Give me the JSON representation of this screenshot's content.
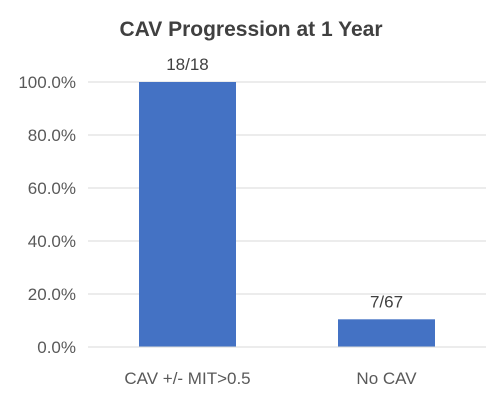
{
  "chart_data": {
    "type": "bar",
    "title": "CAV Progression at 1 Year",
    "categories": [
      "CAV +/- MIT>0.5",
      "No CAV"
    ],
    "values": [
      100.0,
      10.45
    ],
    "data_labels": [
      "18/18",
      "7/67"
    ],
    "ylim": [
      0,
      100
    ],
    "yticks": [
      "0.0%",
      "20.0%",
      "40.0%",
      "60.0%",
      "80.0%",
      "100.0%"
    ],
    "ytick_values": [
      0,
      20,
      40,
      60,
      80,
      100
    ],
    "xlabel": "",
    "ylabel": "",
    "grid": true,
    "legend": "none",
    "bar_color": "#4472C4"
  }
}
